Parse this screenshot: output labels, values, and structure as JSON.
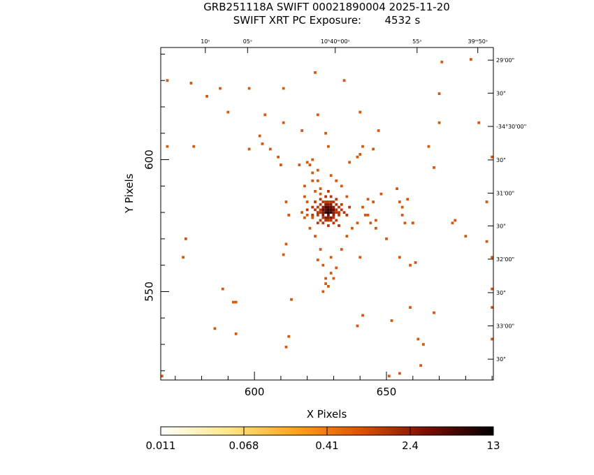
{
  "header": {
    "title": "GRB251118A SWIFT 00021890004 2025-11-20",
    "subtitle_label": "SWIFT XRT PC Exposure:",
    "exposure": "4532 s"
  },
  "chart_data": {
    "type": "heatmap",
    "xlabel": "X Pixels",
    "ylabel": "Y Pixels",
    "xlim": [
      564.5,
      690.5
    ],
    "ylim": [
      516.5,
      642.5
    ],
    "x_ticks": [
      600,
      650
    ],
    "y_ticks": [
      550,
      600
    ],
    "x_minor_step": 10,
    "y_minor_step": 10,
    "top_ticks": [
      "10ˢ",
      "05ˢ",
      "10ʰ40ᵐ00ˢ",
      "55ˢ",
      "39ᵐ50ˢ"
    ],
    "top_tick_x": [
      581.4,
      597.4,
      630.6,
      661.6,
      684.6
    ],
    "right_ticks": [
      "29'00\"",
      "30\"",
      "-34°30'00\"",
      "30\"",
      "31'00\"",
      "30\"",
      "32'00\"",
      "30\"",
      "33'00\"",
      "30\""
    ],
    "right_tick_y": [
      637.7,
      625.2,
      612.6,
      599.9,
      587.3,
      574.9,
      562.3,
      549.6,
      537.0,
      524.4
    ],
    "colorbar": {
      "labels": [
        "0.011",
        "0.068",
        "0.41",
        "2.4",
        "13"
      ],
      "scale": "log",
      "colors": [
        "#ffffff",
        "#ffe88a",
        "#ffa51a",
        "#e05200",
        "#7a0c00",
        "#000000"
      ]
    },
    "source_center": [
      627.5,
      580.5
    ],
    "pixels": [
      [
        567,
        630,
        1
      ],
      [
        567,
        605,
        1
      ],
      [
        565,
        518,
        1
      ],
      [
        577,
        605,
        1
      ],
      [
        576,
        629,
        1
      ],
      [
        574,
        570,
        1
      ],
      [
        573,
        563,
        1
      ],
      [
        582,
        624,
        1
      ],
      [
        587,
        627,
        1
      ],
      [
        590,
        618,
        1
      ],
      [
        588,
        551,
        1
      ],
      [
        592,
        546,
        1
      ],
      [
        593,
        546,
        1
      ],
      [
        585,
        536,
        1
      ],
      [
        593,
        534,
        1
      ],
      [
        598,
        627,
        1
      ],
      [
        598,
        604,
        1
      ],
      [
        604,
        617,
        1
      ],
      [
        602,
        609,
        1
      ],
      [
        603,
        606,
        1
      ],
      [
        606,
        604,
        1
      ],
      [
        609,
        601,
        1
      ],
      [
        610,
        598,
        1
      ],
      [
        611,
        627,
        1
      ],
      [
        611,
        614,
        1
      ],
      [
        612,
        584,
        1
      ],
      [
        613,
        579,
        1
      ],
      [
        612,
        568,
        1
      ],
      [
        611,
        564,
        1
      ],
      [
        614,
        547,
        1
      ],
      [
        613,
        533,
        1
      ],
      [
        612,
        529,
        1
      ],
      [
        618,
        611,
        1
      ],
      [
        620,
        599,
        1
      ],
      [
        622,
        595,
        1
      ],
      [
        624,
        592,
        1
      ],
      [
        623,
        633,
        1
      ],
      [
        624,
        617,
        1
      ],
      [
        625,
        587,
        1
      ],
      [
        634,
        630,
        1
      ],
      [
        627,
        610,
        1
      ],
      [
        628,
        605,
        1
      ],
      [
        639,
        601,
        1
      ],
      [
        640,
        602,
        1
      ],
      [
        641,
        605,
        1
      ],
      [
        640,
        618,
        1
      ],
      [
        640,
        563,
        1
      ],
      [
        641,
        541,
        1
      ],
      [
        639,
        537,
        1
      ],
      [
        642,
        579,
        1
      ],
      [
        643,
        585,
        1
      ],
      [
        645,
        584,
        1
      ],
      [
        646,
        574,
        1
      ],
      [
        647,
        611,
        1
      ],
      [
        648,
        587,
        1
      ],
      [
        650,
        570,
        1
      ],
      [
        652,
        539,
        1
      ],
      [
        655,
        563,
        1
      ],
      [
        656,
        582,
        1
      ],
      [
        658,
        585,
        1
      ],
      [
        657,
        576,
        1
      ],
      [
        660,
        576,
        1
      ],
      [
        661,
        561,
        1
      ],
      [
        659,
        560,
        1
      ],
      [
        660,
        576,
        1
      ],
      [
        662,
        532,
        1
      ],
      [
        666,
        605,
        1
      ],
      [
        668,
        597,
        1
      ],
      [
        670,
        614,
        1
      ],
      [
        670,
        625,
        1
      ],
      [
        671,
        637,
        1
      ],
      [
        675,
        576,
        1
      ],
      [
        676,
        577,
        1
      ],
      [
        680,
        571,
        1
      ],
      [
        682,
        638,
        1
      ],
      [
        685,
        614,
        1
      ],
      [
        688,
        584,
        1
      ],
      [
        688,
        569,
        1
      ],
      [
        690,
        563,
        1
      ],
      [
        690,
        601,
        1
      ],
      [
        690,
        551,
        1
      ],
      [
        690,
        544,
        1
      ],
      [
        690,
        532,
        1
      ],
      [
        659,
        544,
        1
      ],
      [
        668,
        542,
        1
      ],
      [
        664,
        530,
        1
      ],
      [
        663,
        522,
        1
      ],
      [
        655,
        519,
        1
      ],
      [
        651,
        518,
        1
      ],
      [
        645,
        604,
        1
      ],
      [
        636,
        599,
        1
      ],
      [
        622,
        600,
        1
      ],
      [
        621,
        598,
        1
      ],
      [
        617,
        598,
        1
      ],
      [
        619,
        590,
        1
      ],
      [
        620,
        584,
        1
      ],
      [
        618,
        580,
        1
      ],
      [
        619,
        578,
        1
      ],
      [
        621,
        574,
        1
      ],
      [
        623,
        571,
        1
      ],
      [
        625,
        566,
        1
      ],
      [
        624,
        562,
        1
      ],
      [
        626,
        560,
        1
      ],
      [
        629,
        557,
        1
      ],
      [
        630,
        555,
        1
      ],
      [
        627,
        553,
        1
      ],
      [
        629,
        563,
        1
      ],
      [
        633,
        566,
        1
      ],
      [
        635,
        571,
        1
      ],
      [
        637,
        574,
        1
      ],
      [
        639,
        576,
        1
      ],
      [
        644,
        576,
        1
      ],
      [
        646,
        577,
        1
      ],
      [
        635,
        586,
        1
      ],
      [
        633,
        590,
        1
      ],
      [
        631,
        592,
        1
      ],
      [
        629,
        594,
        1
      ],
      [
        624,
        596,
        1
      ],
      [
        622,
        592,
        1
      ],
      [
        623,
        588,
        1
      ],
      [
        619,
        586,
        1
      ],
      [
        620,
        579,
        1
      ],
      [
        622,
        578,
        1
      ],
      [
        625,
        589,
        1
      ],
      [
        641,
        582,
        1
      ],
      [
        643,
        579,
        1
      ],
      [
        654,
        589,
        1
      ],
      [
        655,
        584,
        1
      ],
      [
        656,
        579,
        1
      ],
      [
        631,
        559,
        1
      ],
      [
        627,
        555,
        1
      ],
      [
        628,
        552,
        1
      ],
      [
        626,
        550,
        1
      ],
      [
        627,
        578,
        3
      ],
      [
        628,
        578,
        3
      ],
      [
        629,
        578,
        3
      ],
      [
        626,
        579,
        3
      ],
      [
        630,
        579,
        3
      ],
      [
        627,
        583,
        3
      ],
      [
        629,
        583,
        3
      ],
      [
        626,
        581,
        4
      ],
      [
        627,
        581,
        4
      ],
      [
        628,
        581,
        6
      ],
      [
        629,
        581,
        5
      ],
      [
        630,
        581,
        4
      ],
      [
        627,
        580,
        6
      ],
      [
        628,
        580,
        8
      ],
      [
        629,
        580,
        6
      ],
      [
        627,
        582,
        5
      ],
      [
        628,
        582,
        5
      ],
      [
        629,
        582,
        4
      ],
      [
        626,
        580,
        3
      ],
      [
        630,
        580,
        3
      ],
      [
        625,
        581,
        2
      ],
      [
        631,
        581,
        2
      ],
      [
        626,
        582,
        3
      ],
      [
        630,
        582,
        3
      ],
      [
        628,
        579,
        4
      ],
      [
        628,
        583,
        3
      ],
      [
        625,
        580,
        2
      ],
      [
        631,
        580,
        2
      ],
      [
        626,
        578,
        2
      ],
      [
        630,
        578,
        2
      ],
      [
        624,
        582,
        2
      ],
      [
        632,
        582,
        2
      ],
      [
        625,
        583,
        2
      ],
      [
        631,
        583,
        2
      ],
      [
        627,
        584,
        2
      ],
      [
        629,
        584,
        2
      ],
      [
        628,
        584,
        2
      ],
      [
        628,
        577,
        2
      ],
      [
        627,
        577,
        2
      ],
      [
        629,
        577,
        2
      ],
      [
        624,
        580,
        2
      ],
      [
        632,
        580,
        2
      ],
      [
        623,
        581,
        2
      ],
      [
        633,
        581,
        2
      ],
      [
        626,
        584,
        2
      ],
      [
        630,
        584,
        2
      ],
      [
        625,
        577,
        2
      ],
      [
        631,
        577,
        2
      ],
      [
        624,
        579,
        2
      ],
      [
        632,
        579,
        2
      ],
      [
        626,
        576,
        2
      ],
      [
        630,
        576,
        2
      ],
      [
        628,
        575,
        2
      ],
      [
        622,
        582,
        2
      ],
      [
        634,
        580,
        2
      ],
      [
        627,
        586,
        2
      ],
      [
        629,
        586,
        2
      ],
      [
        625,
        585,
        2
      ],
      [
        631,
        585,
        2
      ],
      [
        623,
        584,
        2
      ],
      [
        633,
        583,
        2
      ],
      [
        622,
        579,
        2
      ],
      [
        635,
        579,
        2
      ],
      [
        624,
        576,
        2
      ],
      [
        632,
        575,
        2
      ],
      [
        628,
        588,
        2
      ],
      [
        620,
        581,
        2
      ],
      [
        636,
        582,
        2
      ]
    ]
  }
}
